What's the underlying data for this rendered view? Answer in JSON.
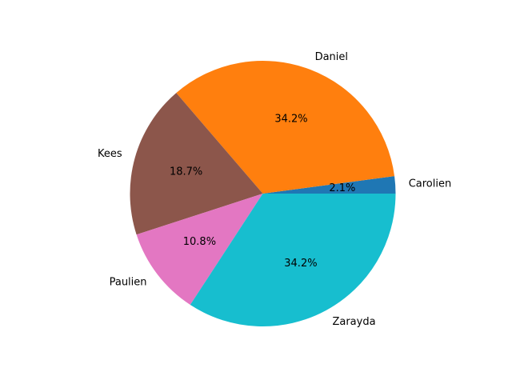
{
  "chart_data": {
    "type": "pie",
    "categories": [
      "Carolien",
      "Daniel",
      "Kees",
      "Paulien",
      "Zarayda"
    ],
    "values": [
      2.1,
      34.2,
      18.7,
      10.8,
      34.2
    ],
    "percent_labels": [
      "2.1%",
      "34.2%",
      "18.7%",
      "10.8%",
      "34.2%"
    ],
    "colors": [
      "#1f77b4",
      "#ff7f0e",
      "#8c564b",
      "#e377c2",
      "#17becf"
    ],
    "start_angle_deg": 0,
    "direction": "counterclockwise",
    "title": "",
    "legend": "none"
  }
}
